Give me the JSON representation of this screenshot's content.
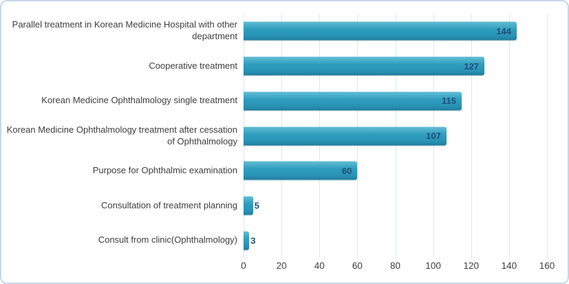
{
  "chart_data": {
    "type": "bar",
    "orientation": "horizontal",
    "title": "",
    "xlabel": "",
    "ylabel": "",
    "categories": [
      "Parallel treatment in Korean Medicine Hospital with other department",
      "Cooperative treatment",
      "Korean Medicine Ophthalmology single treatment",
      "Korean Medicine Ophthalmology treatment after cessation of Ophthalmology",
      "Purpose for Ophthalmic examination",
      "Consultation of treatment planning",
      "Consult from clinic(Ophthalmology)"
    ],
    "values": [
      144,
      127,
      115,
      107,
      60,
      5,
      3
    ],
    "data_labels": [
      "144",
      "127",
      "115",
      "107",
      "60",
      "5",
      "3"
    ],
    "xlim": [
      0,
      160
    ],
    "x_ticks": [
      0,
      20,
      40,
      60,
      80,
      100,
      120,
      140,
      160
    ],
    "x_tick_labels": [
      "0",
      "20",
      "40",
      "60",
      "80",
      "100",
      "120",
      "140",
      "160"
    ],
    "grid": "vertical-gridlines-on",
    "legend": "none",
    "colors": {
      "bar_gradient_top": "#62bdd5",
      "bar_gradient_mid": "#2e9dbe",
      "bar_gradient_low": "#2a94b6",
      "bar_gradient_bottom": "#1f7d9d",
      "data_label": "#1f4e79",
      "category_text": "#3d3d3d",
      "axis_text": "#3f3f3f",
      "gridline": "#dde5f4",
      "outer_border": "#c3d8ec",
      "background": "#ffffff"
    }
  }
}
